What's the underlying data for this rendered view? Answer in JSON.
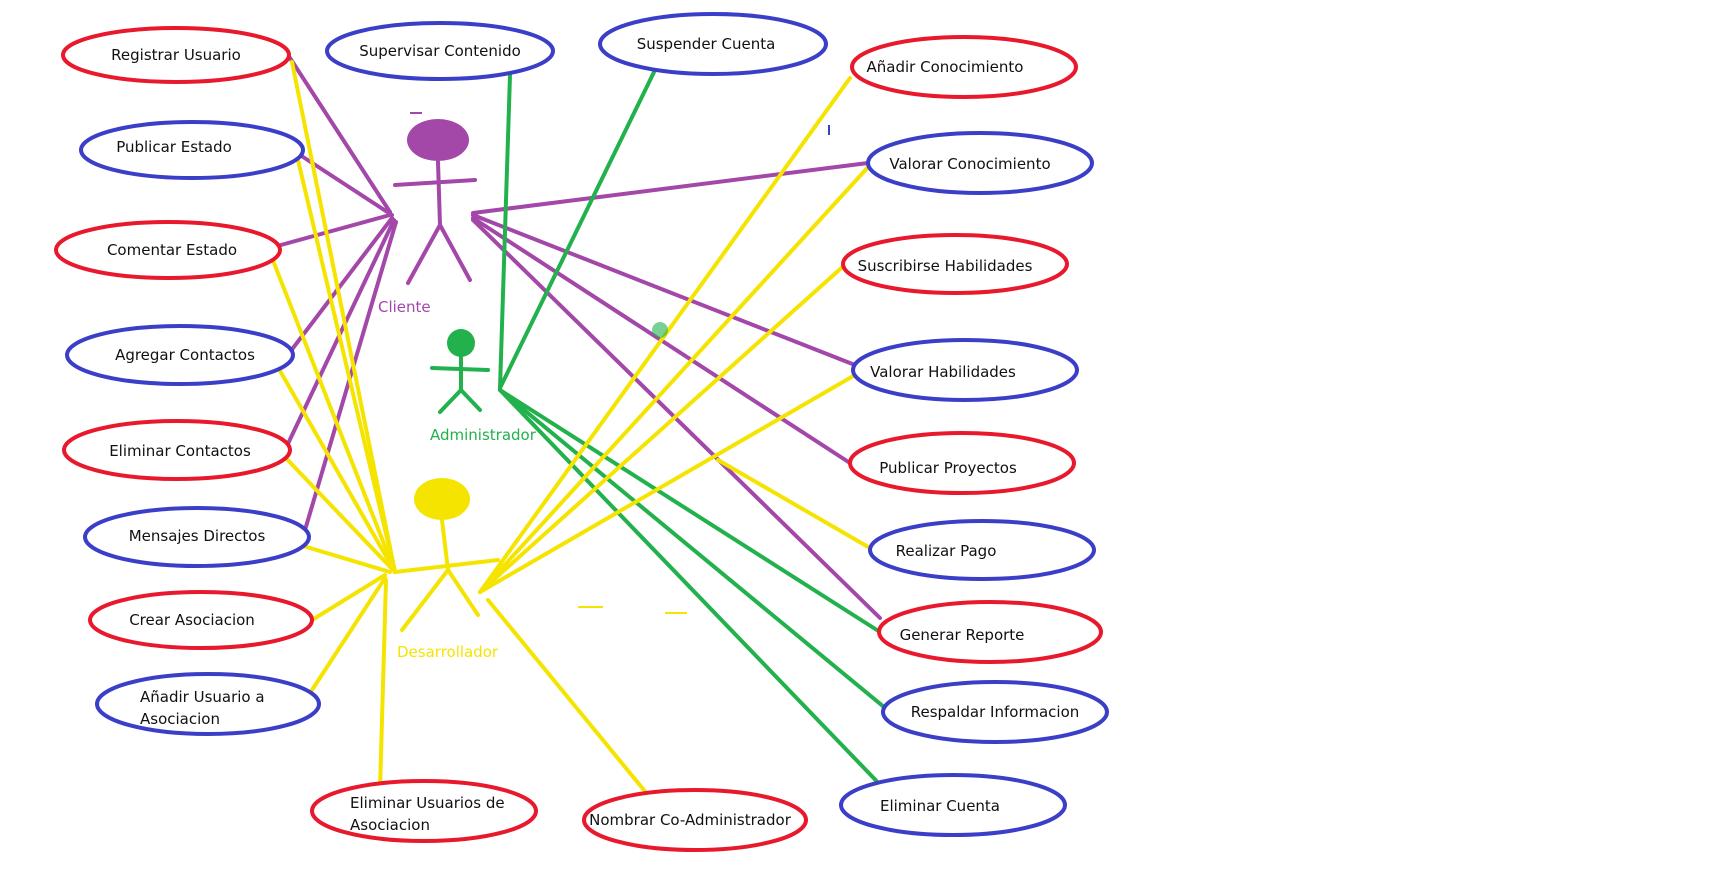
{
  "colors": {
    "client": "#a347a8",
    "admin": "#22b14c",
    "developer": "#f5e400",
    "ellipse_red": "#e8192c",
    "ellipse_blue": "#3b3fc8"
  },
  "actors": {
    "client": {
      "label": "Cliente"
    },
    "admin": {
      "label": "Administrador"
    },
    "developer": {
      "label": "Desarrollador"
    }
  },
  "use_cases": {
    "registrar_usuario": {
      "label": "Registrar Usuario",
      "border": "red"
    },
    "supervisar_contenido": {
      "label": "Supervisar Contenido",
      "border": "blue"
    },
    "suspender_cuenta": {
      "label": "Suspender Cuenta",
      "border": "blue"
    },
    "anadir_conocimiento": {
      "label": "Añadir Conocimiento",
      "border": "red"
    },
    "publicar_estado": {
      "label": "Publicar Estado",
      "border": "blue"
    },
    "valorar_conocimiento": {
      "label": "Valorar Conocimiento",
      "border": "blue"
    },
    "comentar_estado": {
      "label": "Comentar Estado",
      "border": "red"
    },
    "suscribirse_habilidades": {
      "label": "Suscribirse Habilidades",
      "border": "red"
    },
    "agregar_contactos": {
      "label": "Agregar Contactos",
      "border": "blue"
    },
    "valorar_habilidades": {
      "label": "Valorar Habilidades",
      "border": "blue"
    },
    "eliminar_contactos": {
      "label": "Eliminar Contactos",
      "border": "red"
    },
    "publicar_proyectos": {
      "label": "Publicar Proyectos",
      "border": "red"
    },
    "mensajes_directos": {
      "label": "Mensajes Directos",
      "border": "blue"
    },
    "realizar_pago": {
      "label": "Realizar Pago",
      "border": "blue"
    },
    "crear_asociacion": {
      "label": "Crear Asociacion",
      "border": "red"
    },
    "generar_reporte": {
      "label": "Generar Reporte",
      "border": "red"
    },
    "anadir_usuario_asociacion": {
      "label_line1": "Añadir Usuario a",
      "label_line2": "Asociacion",
      "border": "blue"
    },
    "respaldar_informacion": {
      "label": "Respaldar Informacion",
      "border": "blue"
    },
    "eliminar_usuarios_asociacion": {
      "label_line1": "Eliminar Usuarios de",
      "label_line2": "Asociacion",
      "border": "red"
    },
    "nombrar_coadministrador": {
      "label": "Nombrar Co-Administrador",
      "border": "red"
    },
    "eliminar_cuenta": {
      "label": "Eliminar Cuenta",
      "border": "blue"
    }
  }
}
